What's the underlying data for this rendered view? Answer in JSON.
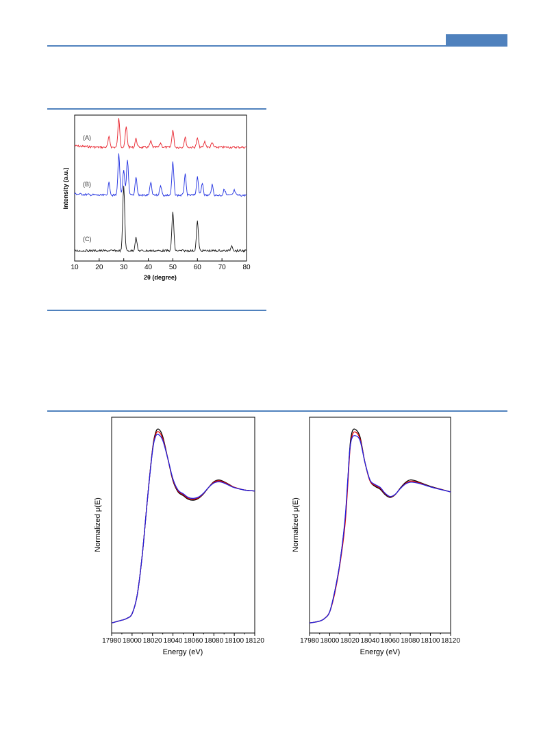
{
  "chart_data": [
    {
      "type": "line",
      "xlabel": "2θ (degree)",
      "ylabel": "Intensity (a.u.)",
      "xlim": [
        10,
        80
      ],
      "xticks": [
        "10",
        "20",
        "30",
        "40",
        "50",
        "60",
        "70",
        "80"
      ],
      "series": [
        {
          "name": "(A)",
          "color": "#e8202a",
          "peaks": [
            [
              24,
              0.35
            ],
            [
              28,
              1.0
            ],
            [
              31,
              0.7
            ],
            [
              35,
              0.3
            ],
            [
              41,
              0.2
            ],
            [
              45,
              0.15
            ],
            [
              50,
              0.6
            ],
            [
              55,
              0.35
            ],
            [
              60,
              0.3
            ],
            [
              63,
              0.2
            ],
            [
              66,
              0.15
            ]
          ]
        },
        {
          "name": "(B)",
          "color": "#1f2fe0",
          "peaks": [
            [
              24,
              0.3
            ],
            [
              28,
              1.0
            ],
            [
              30,
              0.6
            ],
            [
              31.5,
              0.85
            ],
            [
              35,
              0.45
            ],
            [
              41,
              0.3
            ],
            [
              45,
              0.25
            ],
            [
              50,
              0.8
            ],
            [
              55,
              0.5
            ],
            [
              60,
              0.45
            ],
            [
              62,
              0.3
            ],
            [
              66,
              0.25
            ],
            [
              71,
              0.15
            ],
            [
              75,
              0.12
            ]
          ]
        },
        {
          "name": "(C)",
          "color": "#111111",
          "peaks": [
            [
              30,
              1.0
            ],
            [
              35,
              0.2
            ],
            [
              50,
              0.6
            ],
            [
              60,
              0.45
            ],
            [
              74,
              0.08
            ]
          ]
        }
      ]
    },
    {
      "type": "line",
      "xlabel": "Energy (eV)",
      "ylabel": "Normalized μ(E)",
      "xlim": [
        17980,
        18120
      ],
      "xticks": [
        "17980",
        "18000",
        "18020",
        "18040",
        "18060",
        "18080",
        "18100",
        "18120"
      ],
      "series": [
        {
          "color": "#000000",
          "x": [
            17980,
            17990,
            17995,
            18000,
            18005,
            18010,
            18015,
            18020,
            18023,
            18026,
            18030,
            18035,
            18040,
            18045,
            18050,
            18055,
            18060,
            18065,
            18070,
            18075,
            18080,
            18085,
            18090,
            18095,
            18100,
            18110,
            18120
          ],
          "y": [
            0.01,
            0.025,
            0.035,
            0.06,
            0.16,
            0.38,
            0.68,
            0.95,
            1.04,
            1.06,
            1.02,
            0.9,
            0.78,
            0.72,
            0.7,
            0.68,
            0.675,
            0.685,
            0.71,
            0.745,
            0.775,
            0.785,
            0.775,
            0.76,
            0.745,
            0.73,
            0.725
          ]
        },
        {
          "color": "#e00000",
          "x": [
            17980,
            17990,
            17995,
            18000,
            18005,
            18010,
            18015,
            18020,
            18023,
            18026,
            18030,
            18035,
            18040,
            18045,
            18050,
            18055,
            18060,
            18065,
            18070,
            18075,
            18080,
            18085,
            18090,
            18095,
            18100,
            18110,
            18120
          ],
          "y": [
            0.01,
            0.025,
            0.035,
            0.06,
            0.16,
            0.38,
            0.68,
            0.945,
            1.03,
            1.045,
            1.01,
            0.9,
            0.785,
            0.725,
            0.705,
            0.685,
            0.68,
            0.688,
            0.712,
            0.745,
            0.772,
            0.78,
            0.772,
            0.758,
            0.745,
            0.73,
            0.725
          ]
        },
        {
          "color": "#2020e0",
          "x": [
            17980,
            17990,
            17995,
            18000,
            18005,
            18010,
            18015,
            18020,
            18023,
            18026,
            18030,
            18035,
            18040,
            18045,
            18050,
            18055,
            18060,
            18065,
            18070,
            18075,
            18080,
            18085,
            18090,
            18095,
            18100,
            18110,
            18120
          ],
          "y": [
            0.01,
            0.025,
            0.035,
            0.06,
            0.16,
            0.38,
            0.68,
            0.94,
            1.02,
            1.03,
            1.0,
            0.9,
            0.79,
            0.73,
            0.71,
            0.69,
            0.685,
            0.692,
            0.714,
            0.745,
            0.768,
            0.775,
            0.768,
            0.755,
            0.743,
            0.73,
            0.725
          ]
        }
      ]
    },
    {
      "type": "line",
      "xlabel": "Energy (eV)",
      "ylabel": "Normalized μ(E)",
      "xlim": [
        17980,
        18120
      ],
      "xticks": [
        "17980",
        "18000",
        "18020",
        "18040",
        "18060",
        "18080",
        "18100",
        "18120"
      ],
      "series": [
        {
          "color": "#000000",
          "x": [
            17980,
            17990,
            17995,
            18000,
            18005,
            18010,
            18015,
            18018,
            18020,
            18022,
            18025,
            18030,
            18035,
            18040,
            18045,
            18050,
            18055,
            18060,
            18065,
            18070,
            18075,
            18080,
            18085,
            18090,
            18100,
            18110,
            18120
          ],
          "y": [
            0.01,
            0.02,
            0.035,
            0.07,
            0.18,
            0.33,
            0.55,
            0.78,
            0.96,
            1.04,
            1.06,
            1.02,
            0.88,
            0.78,
            0.75,
            0.735,
            0.705,
            0.69,
            0.705,
            0.74,
            0.77,
            0.785,
            0.78,
            0.77,
            0.75,
            0.735,
            0.72
          ]
        },
        {
          "color": "#e00000",
          "x": [
            17980,
            17990,
            17995,
            18000,
            18005,
            18010,
            18015,
            18018,
            18020,
            18022,
            18025,
            18030,
            18035,
            18040,
            18045,
            18050,
            18055,
            18060,
            18065,
            18070,
            18075,
            18080,
            18085,
            18090,
            18100,
            18110,
            18120
          ],
          "y": [
            0.01,
            0.02,
            0.035,
            0.07,
            0.17,
            0.32,
            0.53,
            0.76,
            0.94,
            1.02,
            1.045,
            1.01,
            0.88,
            0.78,
            0.755,
            0.74,
            0.71,
            0.693,
            0.706,
            0.738,
            0.765,
            0.778,
            0.775,
            0.767,
            0.748,
            0.734,
            0.72
          ]
        },
        {
          "color": "#2020e0",
          "x": [
            17980,
            17990,
            17995,
            18000,
            18005,
            18010,
            18015,
            18018,
            18020,
            18022,
            18025,
            18030,
            18035,
            18040,
            18045,
            18050,
            18055,
            18060,
            18065,
            18070,
            18075,
            18080,
            18085,
            18090,
            18100,
            18110,
            18120
          ],
          "y": [
            0.01,
            0.02,
            0.035,
            0.07,
            0.18,
            0.33,
            0.56,
            0.79,
            0.95,
            1.01,
            1.025,
            1.0,
            0.88,
            0.785,
            0.76,
            0.745,
            0.713,
            0.695,
            0.707,
            0.737,
            0.762,
            0.772,
            0.77,
            0.764,
            0.747,
            0.733,
            0.72
          ]
        }
      ]
    }
  ]
}
